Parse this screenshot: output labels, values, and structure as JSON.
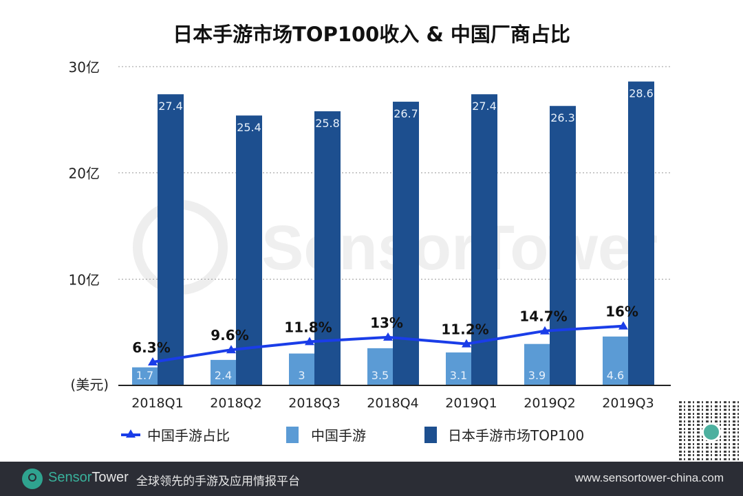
{
  "chart_data": {
    "type": "bar",
    "title": "日本手游市场TOP100收入 & 中国厂商占比",
    "categories": [
      "2018Q1",
      "2018Q2",
      "2018Q3",
      "2018Q4",
      "2019Q1",
      "2019Q2",
      "2019Q3"
    ],
    "ylim": [
      0,
      30
    ],
    "yticks": [
      {
        "value": 10,
        "label": "10亿"
      },
      {
        "value": 20,
        "label": "20亿"
      },
      {
        "value": 30,
        "label": "30亿"
      }
    ],
    "yunit": "(美元)",
    "grid": true,
    "legend_position": "bottom",
    "series": [
      {
        "name": "中国手游",
        "type": "bar",
        "color": "#5b9bd5",
        "values": [
          1.7,
          2.4,
          3,
          3.5,
          3.1,
          3.9,
          4.6
        ],
        "labels": [
          "1.7",
          "2.4",
          "3",
          "3.5",
          "3.1",
          "3.9",
          "4.6"
        ]
      },
      {
        "name": "日本手游市场TOP100",
        "type": "bar",
        "color": "#1d4f8f",
        "values": [
          27.4,
          25.4,
          25.8,
          26.7,
          27.4,
          26.3,
          28.6
        ],
        "labels": [
          "27.4",
          "25.4",
          "25.8",
          "26.7",
          "27.4",
          "26.3",
          "28.6"
        ]
      },
      {
        "name": "中国手游占比",
        "type": "line",
        "axis": "secondary",
        "color": "#1a3de8",
        "values": [
          6.3,
          9.6,
          11.8,
          13,
          11.2,
          14.7,
          16
        ],
        "labels": [
          "6.3%",
          "9.6%",
          "11.8%",
          "13%",
          "11.2%",
          "14.7%",
          "16%"
        ]
      }
    ],
    "y2lim": [
      0,
      86
    ]
  },
  "watermark": "SensorTower",
  "footer": {
    "brand_a": "Sensor",
    "brand_b": "Tower",
    "tagline": "全球领先的手游及应用情报平台",
    "url": "www.sensortower-china.com"
  }
}
